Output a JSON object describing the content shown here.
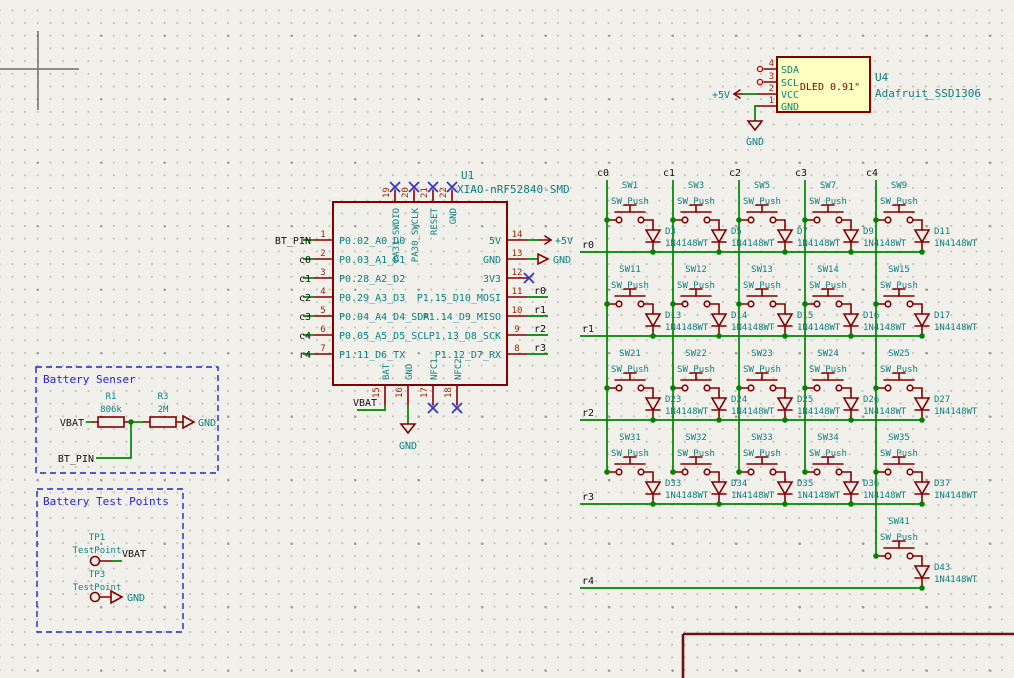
{
  "u1": {
    "ref": "U1",
    "value": "XIAO-nRF52840-SMD",
    "left_pins": [
      {
        "num": "1",
        "name": "P0.02_A0_D0",
        "label": "BT_PIN"
      },
      {
        "num": "2",
        "name": "P0.03_A1_D1",
        "label": "c0"
      },
      {
        "num": "3",
        "name": "P0.28_A2_D2",
        "label": "c1"
      },
      {
        "num": "4",
        "name": "P0.29_A3_D3",
        "label": "c2"
      },
      {
        "num": "5",
        "name": "P0.04_A4_D4_SDA",
        "label": "c3"
      },
      {
        "num": "6",
        "name": "P0.05_A5_D5_SCL",
        "label": "c4"
      },
      {
        "num": "7",
        "name": "P1.11_D6_TX",
        "label": "r4"
      }
    ],
    "right_pins": [
      {
        "num": "14",
        "name": "5V",
        "power": "+5V"
      },
      {
        "num": "13",
        "name": "GND",
        "power_gnd": "GND"
      },
      {
        "num": "12",
        "name": "3V3",
        "nc": true
      },
      {
        "num": "11",
        "name": "P1.15_D10_MOSI",
        "label": "r0"
      },
      {
        "num": "10",
        "name": "P1.14_D9_MISO",
        "label": "r1"
      },
      {
        "num": "9",
        "name": "P1.13_D8_SCK",
        "label": "r2"
      },
      {
        "num": "8",
        "name": "P1.12_D7_RX",
        "label": "r3"
      }
    ],
    "top_pins": [
      {
        "num": "19",
        "name": "PA31_SWDIO",
        "nc": true
      },
      {
        "num": "20",
        "name": "PA30_SWCLK",
        "nc": true
      },
      {
        "num": "21",
        "name": "RESET",
        "nc": true
      },
      {
        "num": "22",
        "name": "GND",
        "nc": true
      }
    ],
    "bottom_pins": [
      {
        "num": "15",
        "name": "BAT",
        "label": "VBAT"
      },
      {
        "num": "16",
        "name": "GND",
        "power_gnd": "GND"
      },
      {
        "num": "17",
        "name": "NFC1",
        "nc": true
      },
      {
        "num": "18",
        "name": "NFC2",
        "nc": true
      }
    ]
  },
  "u4": {
    "ref": "U4",
    "value": "Adafruit_SSD1306",
    "display_text": "DLED 0.91\"",
    "power_5v": "+5V",
    "power_gnd": "GND",
    "pins": [
      {
        "num": "4",
        "name": "SDA"
      },
      {
        "num": "3",
        "name": "SCL"
      },
      {
        "num": "2",
        "name": "VCC"
      },
      {
        "num": "1",
        "name": "GND"
      }
    ]
  },
  "battery_sensor": {
    "title": "Battery Senser",
    "r1": {
      "ref": "R1",
      "value": "806k"
    },
    "r3": {
      "ref": "R3",
      "value": "2M"
    },
    "vbat_label": "VBAT",
    "btpin_label": "BT_PIN",
    "gnd_label": "GND"
  },
  "battery_test_points": {
    "title": "Battery Test Points",
    "tp1": {
      "ref": "TP1",
      "value": "TestPoint",
      "net": "VBAT"
    },
    "tp3": {
      "ref": "TP3",
      "value": "TestPoint",
      "net": "GND"
    }
  },
  "matrix": {
    "columns": [
      "c0",
      "c1",
      "c2",
      "c3",
      "c4"
    ],
    "switch_value": "SW_Push",
    "diode_value": "1N4148WT",
    "rows": [
      {
        "label": "r0",
        "cells": [
          {
            "col": 0,
            "sw": "SW1",
            "d": "D3"
          },
          {
            "col": 1,
            "sw": "SW3",
            "d": "D5"
          },
          {
            "col": 2,
            "sw": "SW5",
            "d": "D7"
          },
          {
            "col": 3,
            "sw": "SW7",
            "d": "D9"
          },
          {
            "col": 4,
            "sw": "SW9",
            "d": "D11"
          }
        ]
      },
      {
        "label": "r1",
        "cells": [
          {
            "col": 0,
            "sw": "SW11",
            "d": "D13"
          },
          {
            "col": 1,
            "sw": "SW12",
            "d": "D14"
          },
          {
            "col": 2,
            "sw": "SW13",
            "d": "D15"
          },
          {
            "col": 3,
            "sw": "SW14",
            "d": "D16"
          },
          {
            "col": 4,
            "sw": "SW15",
            "d": "D17"
          }
        ]
      },
      {
        "label": "r2",
        "cells": [
          {
            "col": 0,
            "sw": "SW21",
            "d": "D23"
          },
          {
            "col": 1,
            "sw": "SW22",
            "d": "D24"
          },
          {
            "col": 2,
            "sw": "SW23",
            "d": "D25"
          },
          {
            "col": 3,
            "sw": "SW24",
            "d": "D26"
          },
          {
            "col": 4,
            "sw": "SW25",
            "d": "D27"
          }
        ]
      },
      {
        "label": "r3",
        "cells": [
          {
            "col": 0,
            "sw": "SW31",
            "d": "D33"
          },
          {
            "col": 1,
            "sw": "SW32",
            "d": "D34"
          },
          {
            "col": 2,
            "sw": "SW33",
            "d": "D35"
          },
          {
            "col": 3,
            "sw": "SW34",
            "d": "D36"
          },
          {
            "col": 4,
            "sw": "SW35",
            "d": "D37"
          }
        ]
      },
      {
        "label": "r4",
        "cells": [
          {
            "col": 4,
            "sw": "SW41",
            "d": "D43"
          }
        ]
      }
    ]
  },
  "colors": {
    "background": "#F1F0EA",
    "wire_green": "#008400",
    "symbol_maroon": "#840000",
    "field_teal": "#0C8080",
    "pin_number_red": "#9A2500",
    "net_label_black": "#111111",
    "no_connect_blue": "#3434CC",
    "annotation_blue": "#2424CC",
    "symbol_fill_yellow": "#FFFFC2"
  }
}
